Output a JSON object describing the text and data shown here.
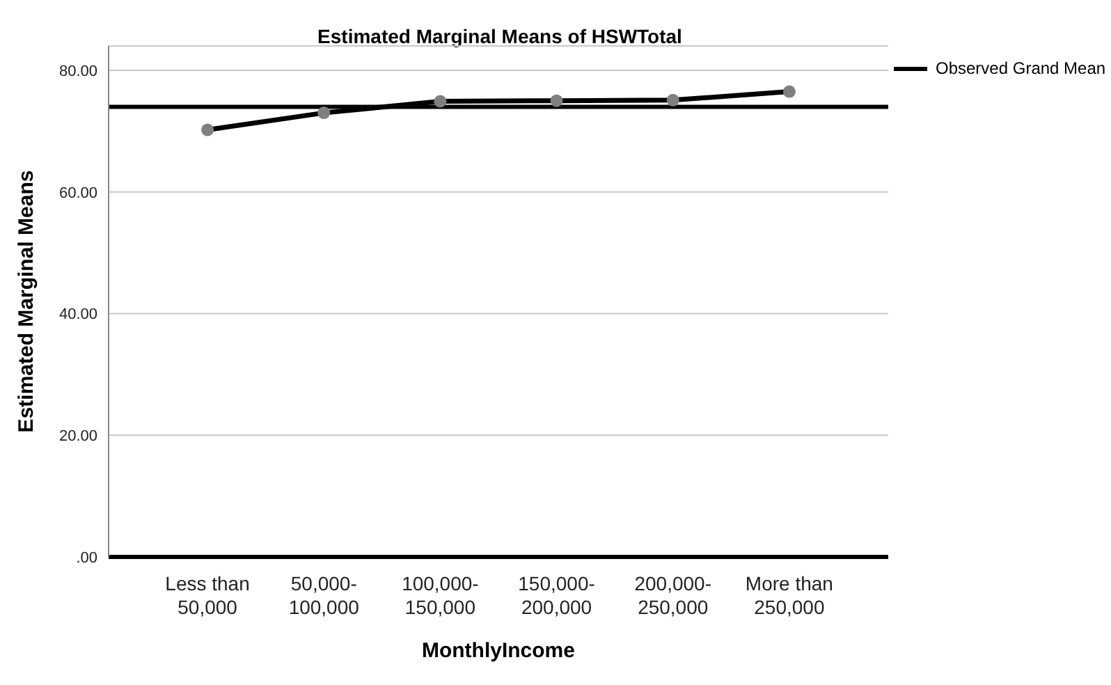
{
  "chart_data": {
    "type": "line",
    "title": "Estimated Marginal Means of HSWTotal",
    "xlabel": "MonthlyIncome",
    "ylabel": "Estimated Marginal Means",
    "categories": [
      "Less than 50,000",
      "50,000-100,000",
      "100,000-150,000",
      "150,000-200,000",
      "200,000-250,000",
      "More than 250,000"
    ],
    "series": [
      {
        "color": "#000000",
        "values": [
          70.2,
          73.0,
          74.9,
          75.0,
          75.1,
          76.5
        ]
      }
    ],
    "ylim": [
      0,
      84
    ],
    "yticks": [
      {
        "value": 0,
        "label": ".00"
      },
      {
        "value": 20,
        "label": "20.00"
      },
      {
        "value": 40,
        "label": "40.00"
      },
      {
        "value": 60,
        "label": "60.00"
      },
      {
        "value": 80,
        "label": "80.00"
      }
    ],
    "ref_lines": [
      {
        "axis": "y",
        "value": 74.0,
        "label": "Observed Grand Mean",
        "color": "#000000"
      }
    ],
    "grid": "y",
    "legend": "top right",
    "marker": "circle"
  }
}
